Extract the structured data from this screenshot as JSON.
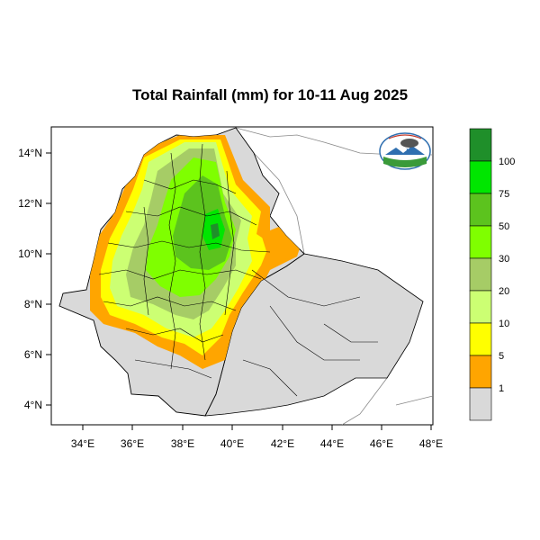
{
  "title": "Total Rainfall (mm) for 10-11 Aug 2025",
  "map": {
    "x_ticks": [
      "34°E",
      "36°E",
      "38°E",
      "40°E",
      "42°E",
      "44°E",
      "46°E",
      "48°E"
    ],
    "y_ticks": [
      "14°N",
      "12°N",
      "10°N",
      "8°N",
      "6°N",
      "4°N"
    ],
    "land_color": "#d9d9d9",
    "outside_color": "#ffffff"
  },
  "legend": {
    "labels": [
      "100",
      "75",
      "50",
      "30",
      "20",
      "10",
      "5",
      "1"
    ],
    "colors": [
      "#1f8f2a",
      "#00e600",
      "#5cc31e",
      "#7fff00",
      "#a6cc66",
      "#ccff73",
      "#ffff00",
      "#ffa500",
      "#d9d9d9"
    ]
  },
  "logo": {
    "icon": "meteorology-agency-logo-icon"
  }
}
